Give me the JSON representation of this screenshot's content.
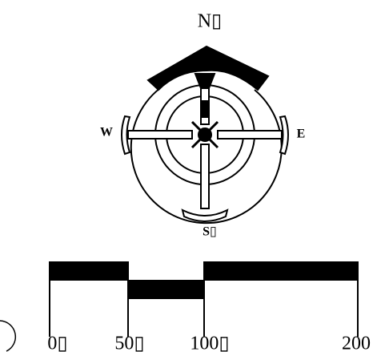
{
  "compass": {
    "north": "N▯",
    "west": "W",
    "east": "E",
    "south": "S▯"
  },
  "scale_bar": {
    "labels": [
      "0▯",
      "50▯",
      "100▯",
      "200"
    ]
  }
}
